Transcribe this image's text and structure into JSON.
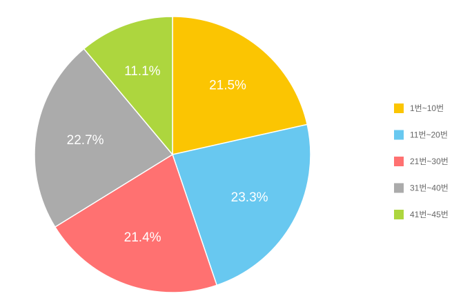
{
  "chart_data": {
    "type": "pie",
    "title": "",
    "legend_position": "right",
    "start_angle": "12 o'clock, clockwise",
    "slices": [
      {
        "label": "1번~10번",
        "value": 21.5,
        "display": "21.5%",
        "color": "#FBC502"
      },
      {
        "label": "11번~20번",
        "value": 23.3,
        "display": "23.3%",
        "color": "#68C8F0"
      },
      {
        "label": "21번~30번",
        "value": 21.4,
        "display": "21.4%",
        "color": "#FF7171"
      },
      {
        "label": "31번~40번",
        "value": 22.7,
        "display": "22.7%",
        "color": "#ABABAB"
      },
      {
        "label": "41번~45번",
        "value": 11.1,
        "display": "11.1%",
        "color": "#ADD63E"
      }
    ]
  }
}
